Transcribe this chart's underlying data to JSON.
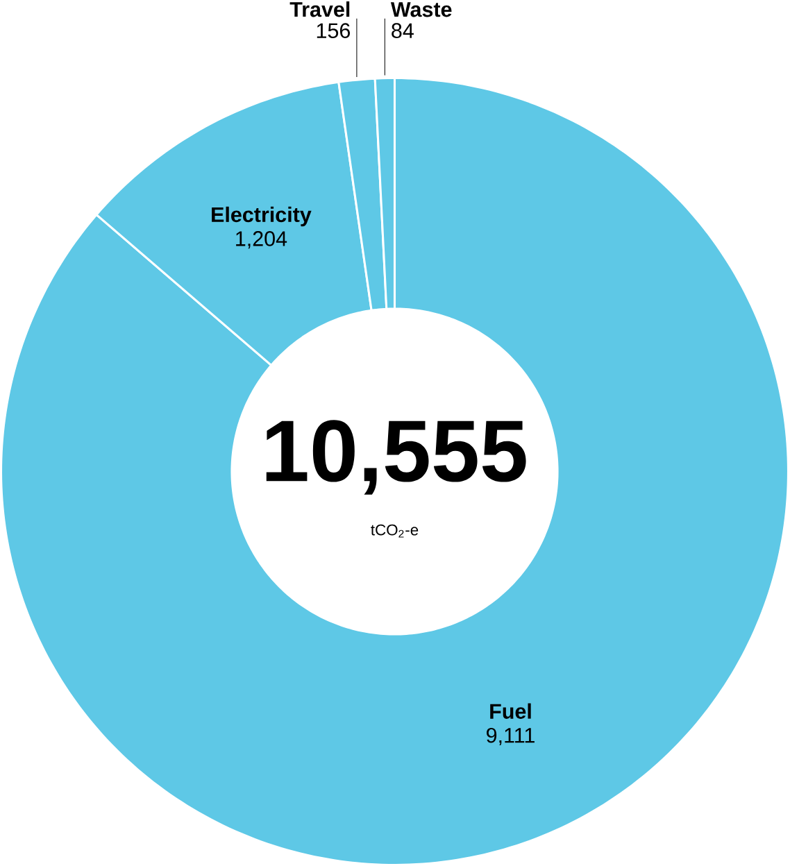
{
  "chart_data": {
    "type": "donut",
    "categories": [
      "Fuel",
      "Electricity",
      "Travel",
      "Waste"
    ],
    "values": [
      9111,
      1204,
      156,
      84
    ],
    "value_labels": [
      "9,111",
      "1,204",
      "156",
      "84"
    ],
    "colors": [
      "#5ec8e6",
      "#5ec8e6",
      "#5ec8e6",
      "#5ec8e6"
    ],
    "annotations": [
      "10,555",
      "tCO$_{2}$-e"
    ]
  }
}
